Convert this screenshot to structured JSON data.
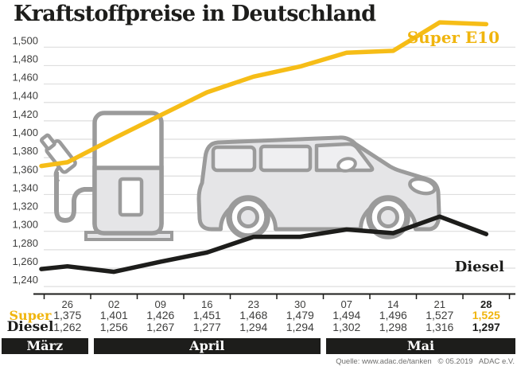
{
  "header": {
    "title": "Kraftstoffpreise in Deutschland"
  },
  "source_line": "Quelle: www.adac.de/tanken   © 05.2019   ADAC e.V.",
  "colors": {
    "accent_yellow": "#F6BD17",
    "ink_black": "#1D1D1B",
    "icon_gray": "#9B9B9B",
    "icon_fill": "#E5E5E7",
    "grid_gray": "#DEDEDE",
    "text_gray": "#3E3E3D",
    "source_gray": "#6E6E6D"
  },
  "chart_data": {
    "type": "line",
    "title": "Kraftstoffpreise in Deutschland",
    "x_tick_labels": [
      "26",
      "02",
      "09",
      "16",
      "23",
      "30",
      "07",
      "14",
      "21",
      "28"
    ],
    "month_groups": [
      {
        "label": "März",
        "from": 0,
        "to": 0
      },
      {
        "label": "April",
        "from": 1,
        "to": 5
      },
      {
        "label": "Mai",
        "from": 6,
        "to": 9
      }
    ],
    "ylim": [
      1240,
      1500
    ],
    "ytick_step": 20,
    "ytick_labels": [
      "1,240",
      "1,260",
      "1,280",
      "1,300",
      "1,320",
      "1,340",
      "1,360",
      "1,380",
      "1,400",
      "1,420",
      "1,440",
      "1,460",
      "1,480",
      "1,500"
    ],
    "grid": true,
    "legend_position": "labels at line ends",
    "series": [
      {
        "name": "Super E10",
        "short_label": "Super",
        "color": "#F6BD17",
        "values": [
          1375,
          1401,
          1426,
          1451,
          1468,
          1479,
          1494,
          1496,
          1527,
          1525
        ],
        "lead_in_estimate": 1371
      },
      {
        "name": "Diesel",
        "short_label": "Diesel",
        "color": "#1D1D1B",
        "values": [
          1262,
          1256,
          1267,
          1277,
          1294,
          1294,
          1302,
          1298,
          1316,
          1297
        ],
        "lead_in_estimate": 1259
      }
    ]
  }
}
